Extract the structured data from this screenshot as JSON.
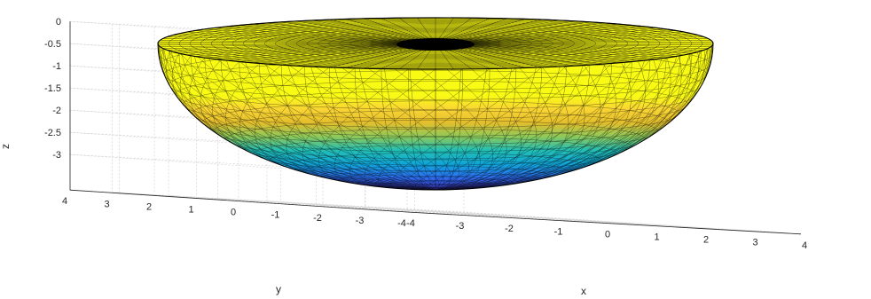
{
  "chart_data": {
    "type": "surface3d",
    "surface": "triangulated hemispherical bowl, colored by z",
    "title": "",
    "xlabel": "x",
    "ylabel": "y",
    "zlabel": "z",
    "xlim": [
      -4,
      4
    ],
    "ylim": [
      -4,
      4
    ],
    "zlim": [
      -3.3,
      0
    ],
    "radius": 3.3,
    "x_ticks": [
      "-4",
      "-3",
      "-2",
      "-1",
      "0",
      "1",
      "2",
      "3",
      "4"
    ],
    "y_ticks": [
      "4",
      "3",
      "2",
      "1",
      "0",
      "-1",
      "-2",
      "-3",
      "-4"
    ],
    "z_ticks": [
      "0",
      "-0.5",
      "-1",
      "-1.5",
      "-2",
      "-2.5",
      "-3"
    ],
    "colormap": [
      "#3e26a8",
      "#2e6ff4",
      "#10a6d8",
      "#23bfb5",
      "#8dc95a",
      "#e3be2d",
      "#f9d534",
      "#f9fb15"
    ],
    "mesh_color": "#000000",
    "grid": true
  }
}
